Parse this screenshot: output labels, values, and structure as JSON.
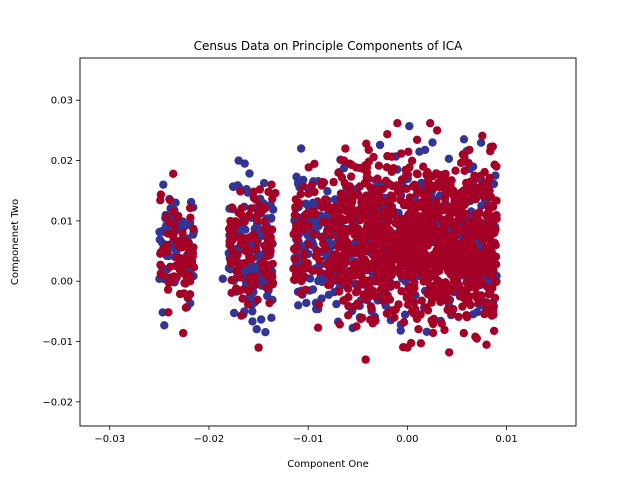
{
  "chart_data": {
    "type": "scatter",
    "title": "Census Data on Principle Components of ICA",
    "xlabel": "Component One",
    "ylabel": "Componenet Two",
    "xlim": [
      -0.033,
      0.017
    ],
    "ylim": [
      -0.024,
      0.037
    ],
    "xticks": [
      -0.03,
      -0.02,
      -0.01,
      0.0,
      0.01
    ],
    "xtick_labels": [
      "−0.03",
      "−0.02",
      "−0.01",
      "0.00",
      "0.01"
    ],
    "yticks": [
      -0.02,
      -0.01,
      0.0,
      0.01,
      0.02,
      0.03
    ],
    "ytick_labels": [
      "−0.02",
      "−0.01",
      "0.00",
      "0.01",
      "0.02",
      "0.03"
    ],
    "grid": false,
    "legend": "none",
    "series_colors": [
      "#313695",
      "#a50026"
    ],
    "clusters": [
      {
        "x_range": [
          -0.025,
          -0.0215
        ],
        "y_range": [
          -0.0085,
          0.018
        ],
        "count": 150
      },
      {
        "x_range": [
          -0.018,
          -0.0135
        ],
        "y_range": [
          -0.011,
          0.02
        ],
        "count": 260
      },
      {
        "x_range": [
          -0.0115,
          -0.007
        ],
        "y_range": [
          -0.008,
          0.022
        ],
        "count": 240
      },
      {
        "x_range": [
          -0.007,
          0.009
        ],
        "y_range": [
          -0.013,
          0.0265
        ],
        "count": 1400
      }
    ],
    "points": [
      {
        "x": -0.0236,
        "y": 0.0178,
        "series": 1
      },
      {
        "x": -0.0246,
        "y": 0.016,
        "series": 0
      },
      {
        "x": -0.0226,
        "y": -0.0086,
        "series": 1
      },
      {
        "x": -0.0245,
        "y": -0.0073,
        "series": 0
      },
      {
        "x": -0.0186,
        "y": 0.0004,
        "series": 0
      },
      {
        "x": -0.017,
        "y": 0.02,
        "series": 0
      },
      {
        "x": -0.0164,
        "y": 0.0195,
        "series": 0
      },
      {
        "x": -0.014,
        "y": 0.0148,
        "series": 1
      },
      {
        "x": -0.015,
        "y": -0.011,
        "series": 1
      },
      {
        "x": -0.0133,
        "y": 0.0146,
        "series": 1
      },
      {
        "x": -0.0107,
        "y": 0.022,
        "series": 0
      },
      {
        "x": -0.0105,
        "y": 0.0168,
        "series": 0
      },
      {
        "x": -0.011,
        "y": 0.0165,
        "series": 0
      },
      {
        "x": -0.0095,
        "y": 0.013,
        "series": 0
      },
      {
        "x": -0.008,
        "y": 0.0125,
        "series": 1
      },
      {
        "x": -0.009,
        "y": -0.0077,
        "series": 1
      },
      {
        "x": -0.001,
        "y": 0.0262,
        "series": 1
      },
      {
        "x": 0.0002,
        "y": 0.0257,
        "series": 0
      },
      {
        "x": 0.0023,
        "y": 0.0262,
        "series": 1
      },
      {
        "x": 0.003,
        "y": 0.025,
        "series": 1
      },
      {
        "x": 0.0056,
        "y": 0.021,
        "series": 1
      },
      {
        "x": 0.0073,
        "y": 0.015,
        "series": 1
      },
      {
        "x": 0.0085,
        "y": 0.004,
        "series": 1
      },
      {
        "x": -0.0042,
        "y": -0.013,
        "series": 1
      },
      {
        "x": 0.0,
        "y": -0.011,
        "series": 1
      },
      {
        "x": 0.007,
        "y": -0.0095,
        "series": 1
      }
    ]
  }
}
